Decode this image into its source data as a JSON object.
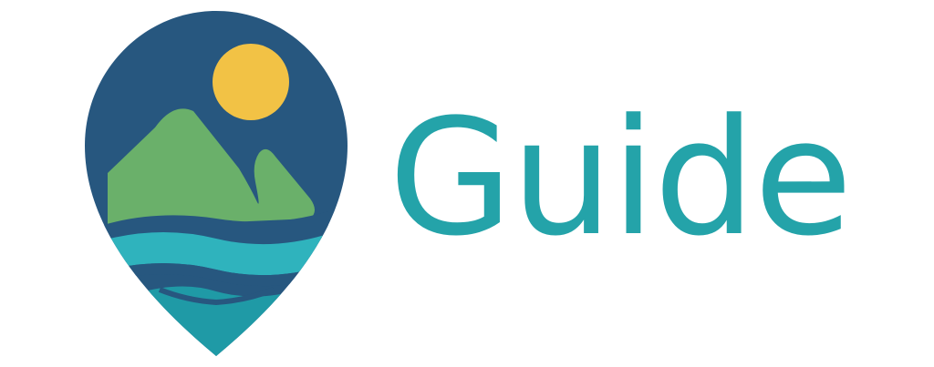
{
  "brand": {
    "name": "Guide",
    "colors": {
      "pin": "#27577f",
      "sun": "#f2c245",
      "mountain": "#6ab06a",
      "water_light": "#2fb3bd",
      "water_dark": "#1f9aa6",
      "wordmark": "#24a3a9"
    },
    "icon": "map-pin-landscape-icon"
  }
}
